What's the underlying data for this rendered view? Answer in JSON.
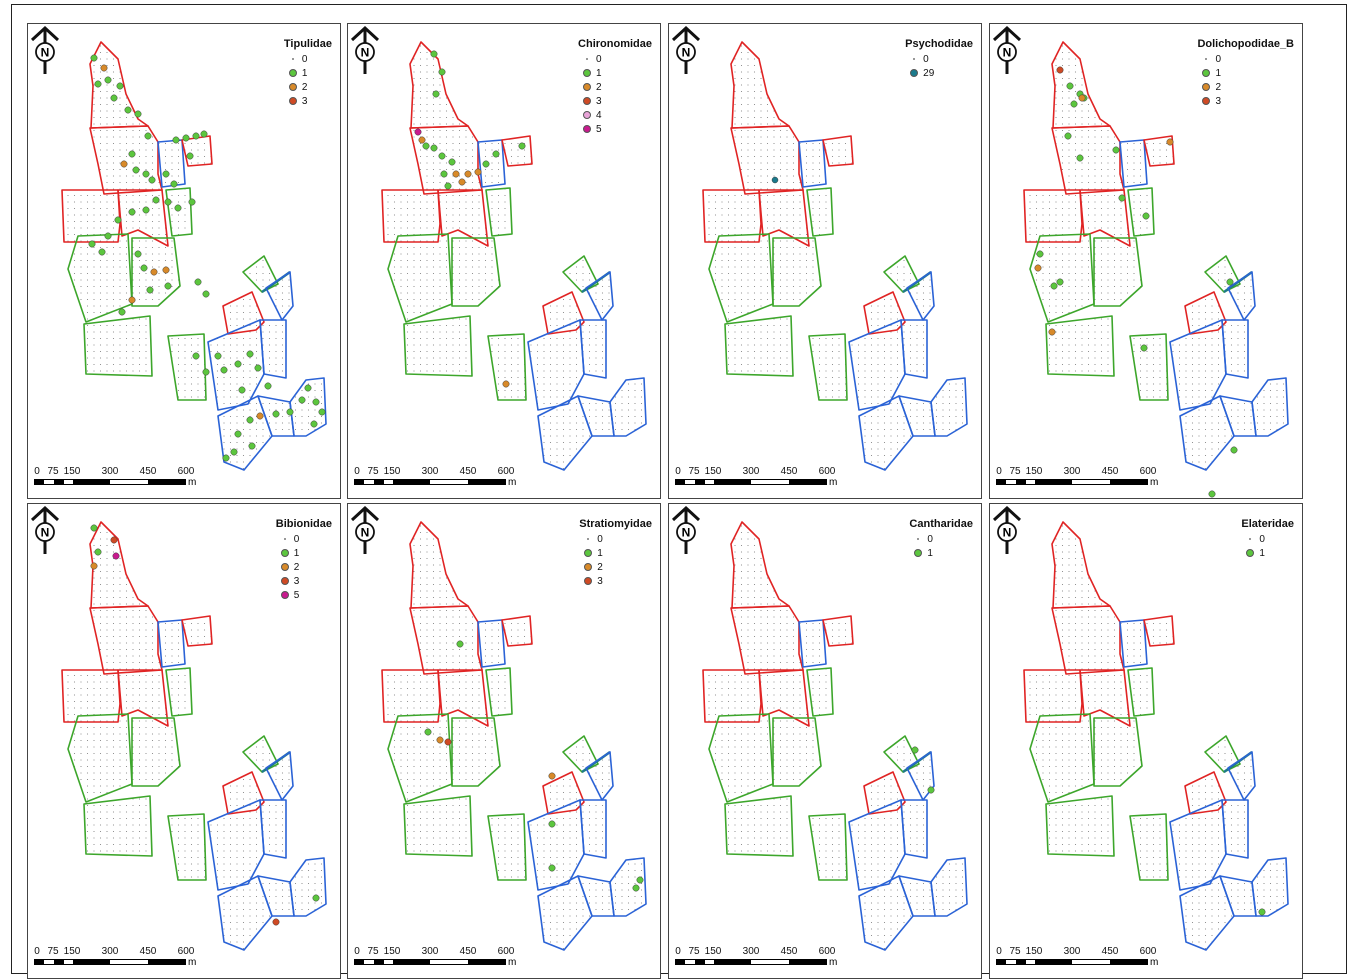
{
  "legend_colors": {
    "0": "#777777",
    "1": "#5cc63e",
    "2": "#d88a2a",
    "3": "#cf4a24",
    "4": "#e8a4d8",
    "5": "#c81a8e",
    "29": "#1a7a8c"
  },
  "field_colors": {
    "red": "#e02424",
    "blue": "#2b63d6",
    "green": "#3da62b",
    "teal": "#1e7a8a"
  },
  "north_label": "N",
  "scale": {
    "ticks": [
      "0",
      "75",
      "150",
      "300",
      "450",
      "600"
    ],
    "unit": "m"
  },
  "panels": [
    {
      "title": "Tipulidae",
      "legend": [
        "0",
        "1",
        "2",
        "3"
      ]
    },
    {
      "title": "Chironomidae",
      "legend": [
        "0",
        "1",
        "2",
        "3",
        "4",
        "5"
      ]
    },
    {
      "title": "Psychodidae",
      "legend": [
        "0",
        "29"
      ]
    },
    {
      "title": "Dolichopodidae_B",
      "legend": [
        "0",
        "1",
        "2",
        "3"
      ]
    },
    {
      "title": "Bibionidae",
      "legend": [
        "0",
        "1",
        "2",
        "3",
        "5"
      ]
    },
    {
      "title": "Stratiomyidae",
      "legend": [
        "0",
        "1",
        "2",
        "3"
      ]
    },
    {
      "title": "Cantharidae",
      "legend": [
        "0",
        "1"
      ]
    },
    {
      "title": "Elateridae",
      "legend": [
        "0",
        "1"
      ]
    }
  ]
}
